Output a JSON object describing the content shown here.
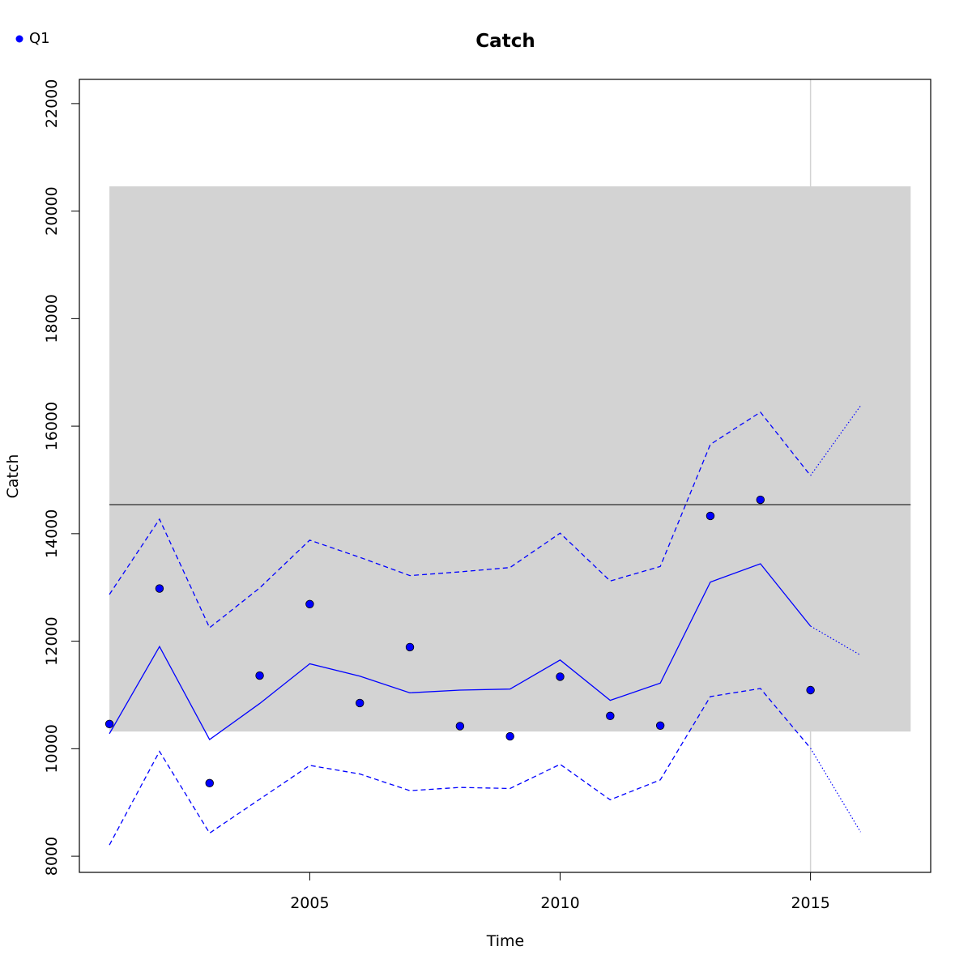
{
  "chart_data": {
    "type": "line",
    "title": "Catch",
    "xlabel": "Time",
    "ylabel": "Catch",
    "xlim": [
      2000.4,
      2017.4
    ],
    "ylim": [
      7700,
      22450
    ],
    "x_ticks": [
      2005,
      2010,
      2015
    ],
    "y_ticks": [
      8000,
      10000,
      12000,
      14000,
      16000,
      18000,
      20000,
      22000
    ],
    "legend": {
      "position": "top-left",
      "entries": [
        "Q1"
      ]
    },
    "colors": {
      "series": "#0000ff",
      "band": "#d3d3d3",
      "reference": "#000000",
      "vline": "#d3d3d3"
    },
    "band": {
      "x": [
        2001,
        2017
      ],
      "y": [
        10320,
        20460
      ]
    },
    "reference_line": {
      "y": 14540,
      "x": [
        2001,
        2017
      ]
    },
    "vertical_line": {
      "x": 2015
    },
    "series": [
      {
        "name": "Q1",
        "style": "points",
        "x": [
          2001,
          2002,
          2003,
          2004,
          2005,
          2006,
          2007,
          2008,
          2009,
          2010,
          2011,
          2012,
          2013,
          2014,
          2015
        ],
        "values": [
          10460,
          12980,
          9360,
          11360,
          12690,
          10850,
          11890,
          10420,
          10230,
          11340,
          10610,
          10430,
          14330,
          14630,
          11090
        ]
      },
      {
        "style": "solid",
        "x": [
          2001,
          2002,
          2003,
          2004,
          2005,
          2006,
          2007,
          2008,
          2009,
          2010,
          2011,
          2012,
          2013,
          2014,
          2015
        ],
        "values": [
          10280,
          11900,
          10170,
          10840,
          11580,
          11350,
          11040,
          11090,
          11110,
          11650,
          10900,
          11220,
          13100,
          13440,
          12280
        ]
      },
      {
        "style": "dashed",
        "x": [
          2001,
          2002,
          2003,
          2004,
          2005,
          2006,
          2007,
          2008,
          2009,
          2010,
          2011,
          2012,
          2013,
          2014,
          2015
        ],
        "values": [
          12870,
          14270,
          12250,
          12990,
          13880,
          13560,
          13220,
          13290,
          13370,
          14010,
          13120,
          13390,
          15660,
          16260,
          15080
        ]
      },
      {
        "style": "dashed",
        "x": [
          2001,
          2002,
          2003,
          2004,
          2005,
          2006,
          2007,
          2008,
          2009,
          2010,
          2011,
          2012,
          2013,
          2014,
          2015
        ],
        "values": [
          8210,
          9950,
          8430,
          9060,
          9690,
          9530,
          9220,
          9280,
          9260,
          9710,
          9050,
          9420,
          10970,
          11120,
          10010
        ]
      },
      {
        "style": "dotted",
        "x": [
          2015,
          2016
        ],
        "values": [
          12280,
          11740
        ]
      },
      {
        "style": "dotted",
        "x": [
          2015,
          2016
        ],
        "values": [
          15080,
          16380
        ]
      },
      {
        "style": "dotted",
        "x": [
          2015,
          2016
        ],
        "values": [
          10010,
          8450
        ]
      }
    ]
  }
}
